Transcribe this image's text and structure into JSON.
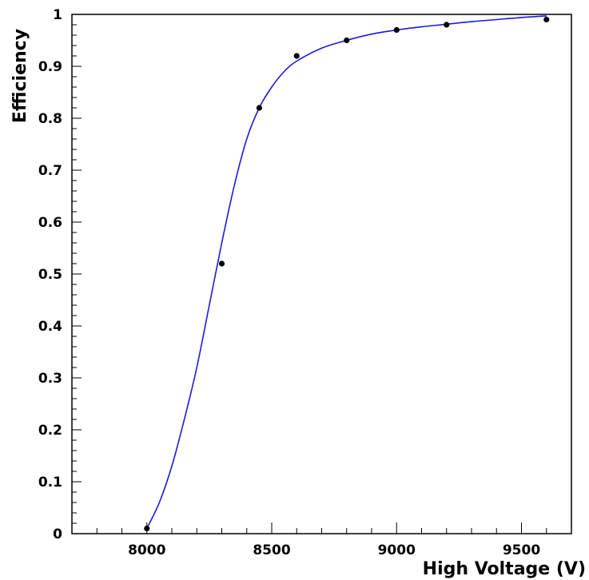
{
  "chart_data": {
    "type": "scatter",
    "xlabel": "High Voltage (V)",
    "ylabel": "Efficiency",
    "xlim": [
      7700,
      9700
    ],
    "ylim": [
      0,
      1
    ],
    "x_ticks": [
      8000,
      8500,
      9000,
      9500
    ],
    "y_ticks": [
      0,
      0.1,
      0.2,
      0.3,
      0.4,
      0.5,
      0.6,
      0.7,
      0.8,
      0.9,
      1
    ],
    "x_tick_labels": [
      "8000",
      "8500",
      "9000",
      "9500"
    ],
    "y_tick_labels": [
      "0",
      "0.1",
      "0.2",
      "0.3",
      "0.4",
      "0.5",
      "0.6",
      "0.7",
      "0.8",
      "0.9",
      "1"
    ],
    "grid": false,
    "series": [
      {
        "kind": "points",
        "x": [
          8000,
          8300,
          8450,
          8600,
          8800,
          9000,
          9200,
          9600
        ],
        "y": [
          0.01,
          0.52,
          0.82,
          0.92,
          0.95,
          0.97,
          0.98,
          0.99
        ]
      },
      {
        "kind": "fit",
        "x": [
          8000,
          8050,
          8100,
          8150,
          8200,
          8250,
          8300,
          8350,
          8400,
          8450,
          8500,
          8550,
          8600,
          8700,
          8800,
          8900,
          9000,
          9100,
          9200,
          9300,
          9400,
          9500,
          9600
        ],
        "y": [
          0.01,
          0.06,
          0.13,
          0.22,
          0.32,
          0.44,
          0.56,
          0.67,
          0.76,
          0.82,
          0.86,
          0.89,
          0.91,
          0.935,
          0.95,
          0.962,
          0.97,
          0.976,
          0.981,
          0.986,
          0.99,
          0.994,
          0.997
        ]
      }
    ],
    "colors": {
      "fit_line": "#1a1adb",
      "points": "#000000",
      "axes": "#000000"
    }
  }
}
